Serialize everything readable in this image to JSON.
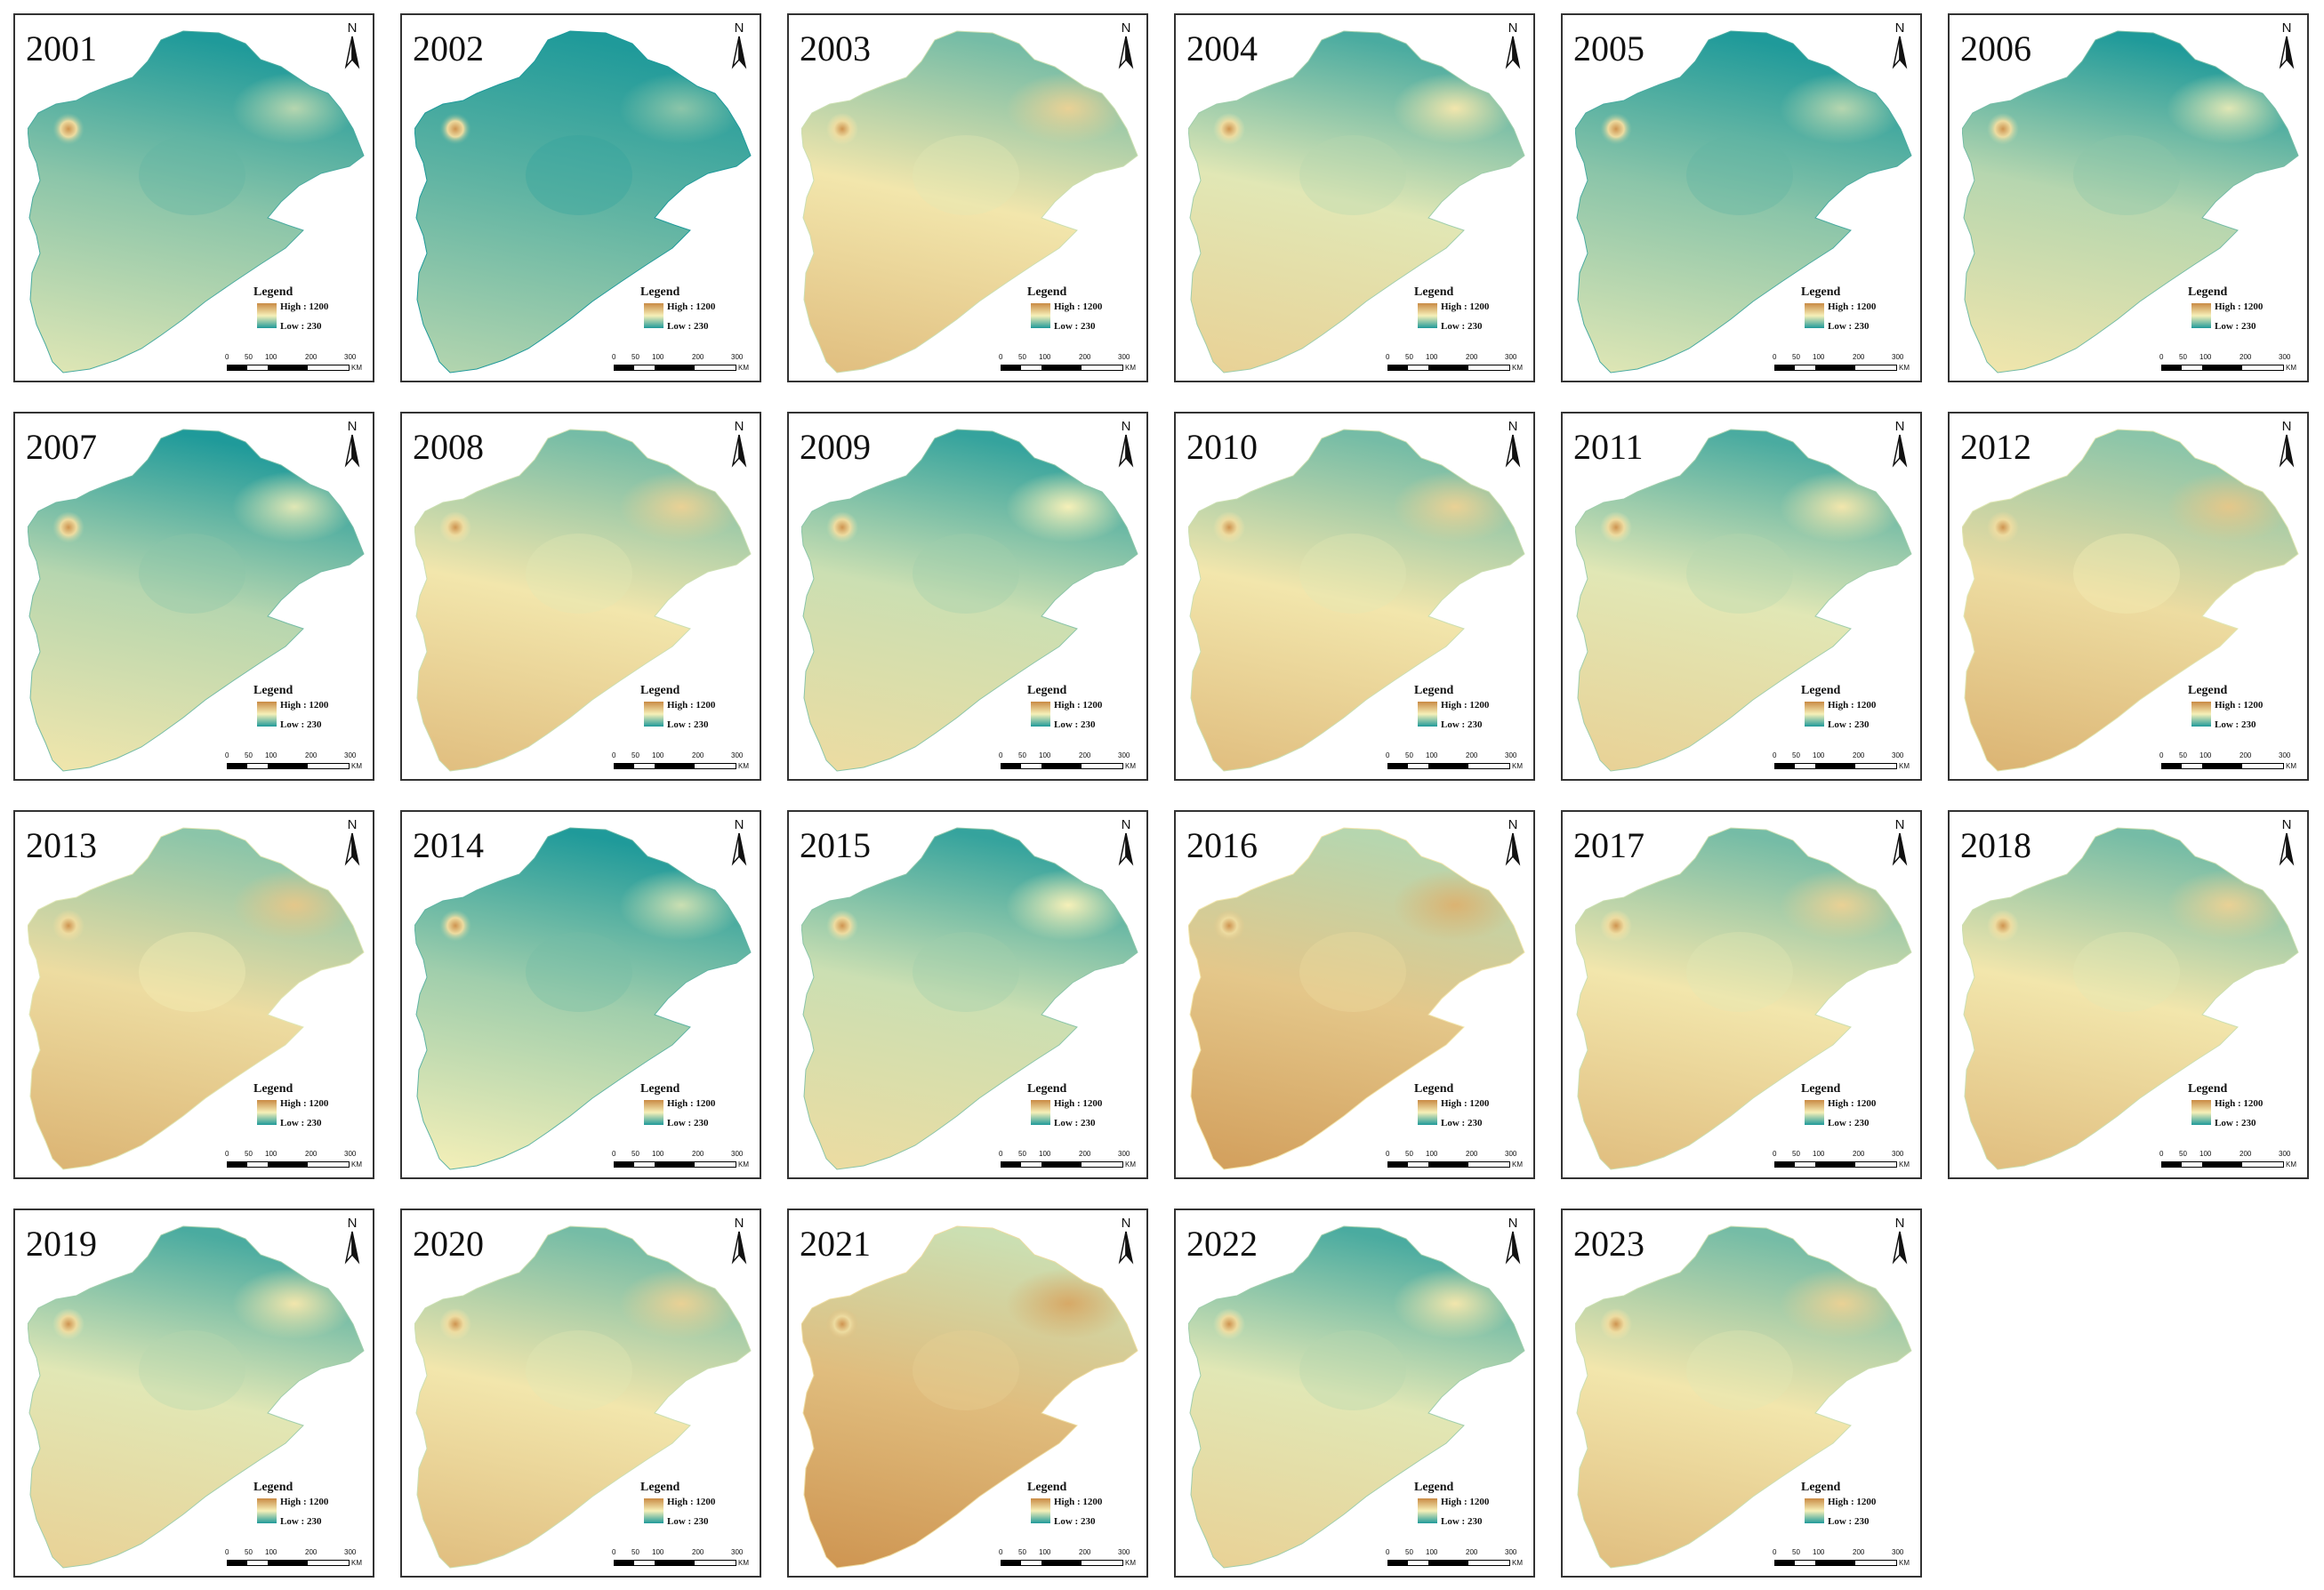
{
  "legend": {
    "title": "Legend",
    "high": "High : 1200",
    "low": "Low : 230",
    "colors": {
      "high": "#c98a44",
      "mid": "#f6f0b8",
      "low": "#1f9a9a"
    }
  },
  "north_label": "N",
  "scale": {
    "ticks": [
      "0",
      "50",
      "100",
      "200",
      "300"
    ],
    "unit": "KM"
  },
  "panels": [
    {
      "year": "2001",
      "level": 0.25
    },
    {
      "year": "2002",
      "level": 0.15
    },
    {
      "year": "2003",
      "level": 0.55
    },
    {
      "year": "2004",
      "level": 0.45
    },
    {
      "year": "2005",
      "level": 0.25
    },
    {
      "year": "2006",
      "level": 0.35
    },
    {
      "year": "2007",
      "level": 0.35
    },
    {
      "year": "2008",
      "level": 0.55
    },
    {
      "year": "2009",
      "level": 0.4
    },
    {
      "year": "2010",
      "level": 0.55
    },
    {
      "year": "2011",
      "level": 0.45
    },
    {
      "year": "2012",
      "level": 0.6
    },
    {
      "year": "2013",
      "level": 0.6
    },
    {
      "year": "2014",
      "level": 0.3
    },
    {
      "year": "2015",
      "level": 0.4
    },
    {
      "year": "2016",
      "level": 0.7
    },
    {
      "year": "2017",
      "level": 0.55
    },
    {
      "year": "2018",
      "level": 0.55
    },
    {
      "year": "2019",
      "level": 0.45
    },
    {
      "year": "2020",
      "level": 0.55
    },
    {
      "year": "2021",
      "level": 0.75
    },
    {
      "year": "2022",
      "level": 0.45
    },
    {
      "year": "2023",
      "level": 0.55
    }
  ]
}
